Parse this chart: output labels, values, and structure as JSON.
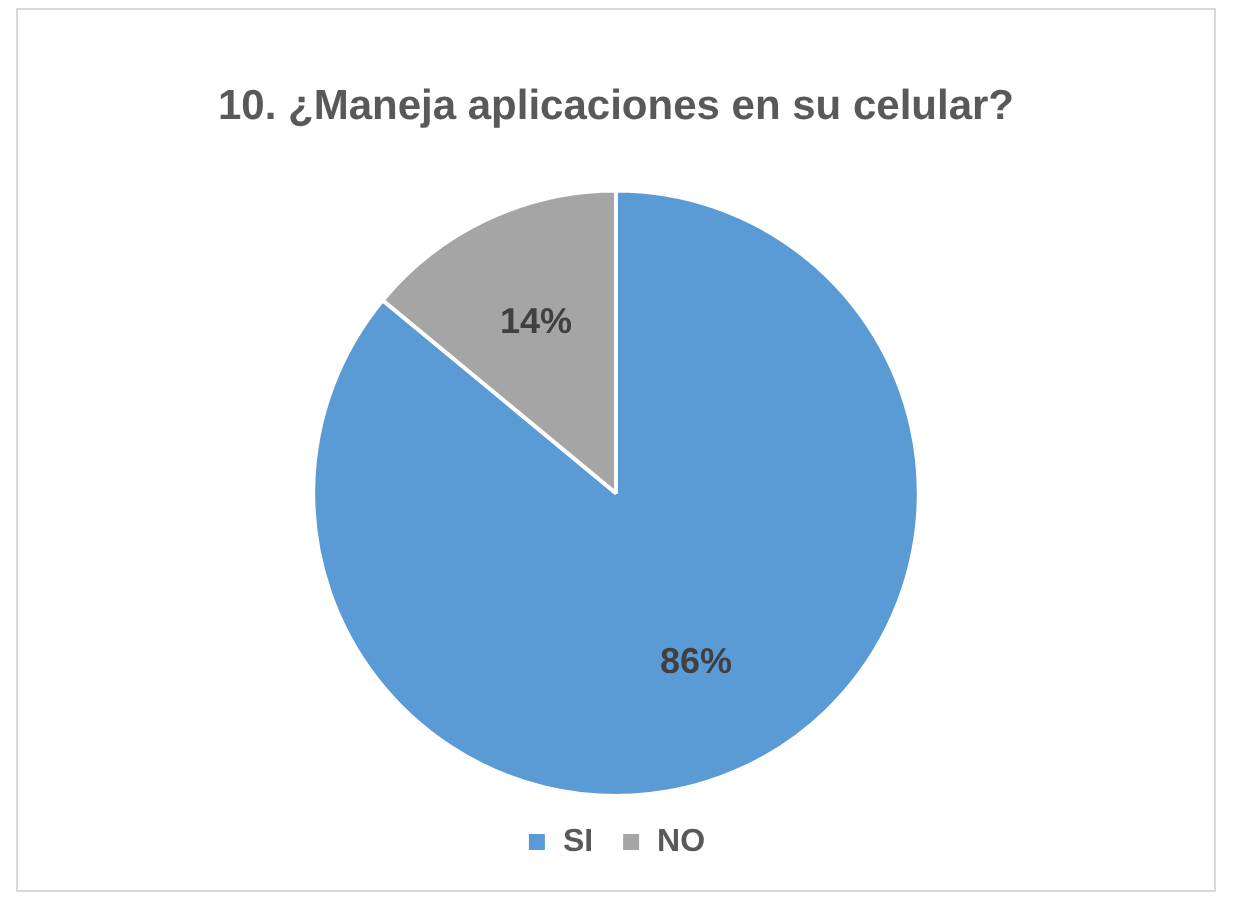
{
  "chart_data": {
    "type": "pie",
    "title": "10. ¿Maneja aplicaciones en su celular?",
    "categories": [
      "SI",
      "NO"
    ],
    "values": [
      86,
      14
    ],
    "value_labels": [
      "86%",
      "14%"
    ],
    "colors": [
      "#5b9bd5",
      "#a5a5a5"
    ],
    "legend": "bottom"
  }
}
